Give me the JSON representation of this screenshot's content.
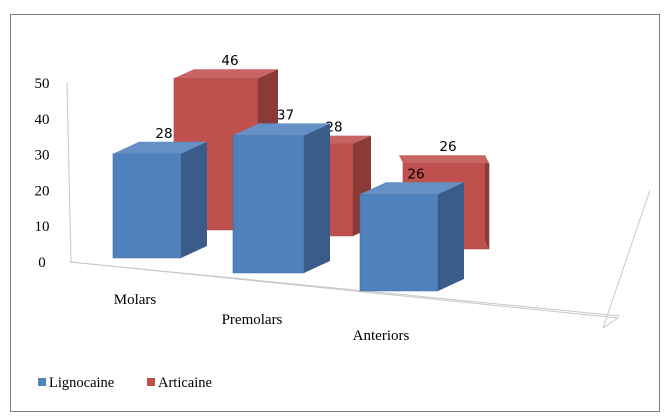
{
  "chart_data": {
    "type": "bar",
    "categories": [
      "Molars",
      "Premolars",
      "Anteriors"
    ],
    "series": [
      {
        "name": "Lignocaine",
        "values": [
          28,
          37,
          26
        ],
        "color": "#4f81bd"
      },
      {
        "name": "Articaine",
        "values": [
          46,
          28,
          26
        ],
        "color": "#c0504d"
      }
    ],
    "yticks": [
      "0",
      "10",
      "20",
      "30",
      "40",
      "50"
    ],
    "ylim": [
      0,
      50
    ],
    "grid": false,
    "legend_position": "bottom-left",
    "style": "3d-column"
  }
}
